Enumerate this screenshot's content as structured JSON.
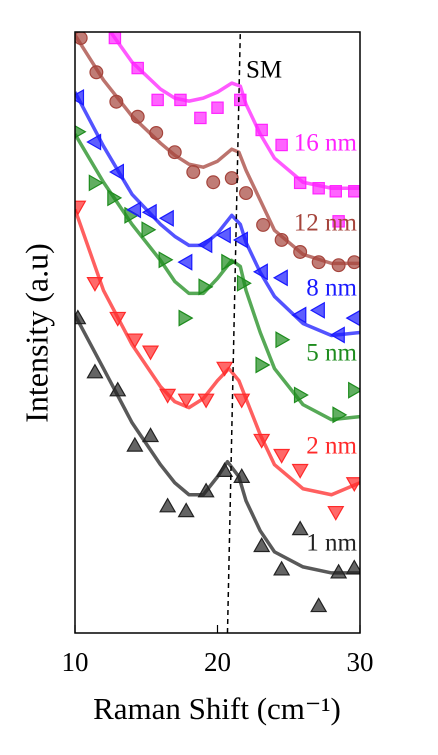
{
  "chart_data": {
    "type": "scatter-fit",
    "x_label": "Raman Shift (cm⁻¹)",
    "y_label": "Intensity (a.u)",
    "xlim": [
      10,
      30
    ],
    "xticks": [
      10,
      20,
      30
    ],
    "ylim": [
      0,
      100
    ],
    "sm_line": {
      "label": "SM",
      "x": [
        20.7,
        21.6
      ],
      "y": [
        0,
        100
      ]
    },
    "series": [
      {
        "name": "1 nm",
        "color": "#222222",
        "marker": "triangle-up",
        "x": [
          10.2,
          11.4,
          13.0,
          14.2,
          15.3,
          16.5,
          17.8,
          19.2,
          20.5,
          21.7,
          23.1,
          24.5,
          25.8,
          27.1,
          28.5,
          29.6
        ],
        "values": [
          52.4,
          43.4,
          40.4,
          31.2,
          32.8,
          21.1,
          20.3,
          23.6,
          27.0,
          26.0,
          14.5,
          10.6,
          17.3,
          4.5,
          10.1,
          10.8
        ],
        "fit": {
          "x": [
            10,
            12,
            14,
            16,
            17,
            18,
            19,
            20,
            20.7,
            21.5,
            22,
            23,
            24,
            26,
            28,
            30
          ],
          "values": [
            52.9,
            44,
            35,
            28,
            25,
            23,
            23,
            26,
            28.5,
            26,
            22,
            17,
            13.5,
            11,
            10,
            10
          ]
        }
      },
      {
        "name": "2 nm",
        "color": "#ff2a2a",
        "marker": "triangle-down",
        "x": [
          10.2,
          11.4,
          13.0,
          14.2,
          15.3,
          16.5,
          17.8,
          19.2,
          20.5,
          21.7,
          23.1,
          24.5,
          25.8,
          28.3,
          29.6
        ],
        "values": [
          70.9,
          58.2,
          52.4,
          48.8,
          46.8,
          39.6,
          38.8,
          38.8,
          44.1,
          38.8,
          32.1,
          29.6,
          27.1,
          20.1,
          24.9
        ],
        "fit": {
          "x": [
            10,
            12,
            14,
            16,
            17,
            18,
            19,
            20,
            20.8,
            21.5,
            22,
            23,
            24,
            26,
            28,
            30
          ],
          "values": [
            70.5,
            57,
            48,
            41,
            38.5,
            37.5,
            39,
            42,
            44,
            42,
            39,
            33,
            28,
            24,
            23,
            25
          ]
        }
      },
      {
        "name": "5 nm",
        "color": "#1e8c1e",
        "marker": "triangle-right",
        "x": [
          10.2,
          11.4,
          12.7,
          13.9,
          15.1,
          16.3,
          17.7,
          19.1,
          20.7,
          21.8,
          23.1,
          24.5,
          25.8,
          28.5,
          29.6
        ],
        "values": [
          83.4,
          74.9,
          72.4,
          69.5,
          67.1,
          62.1,
          52.4,
          57.6,
          61.7,
          58.2,
          44.6,
          48.8,
          39.6,
          36.3,
          40.4
        ],
        "fit": {
          "x": [
            10,
            12,
            14,
            16,
            17,
            18,
            19,
            20,
            21,
            21.6,
            22,
            23,
            24,
            26,
            28,
            30
          ],
          "values": [
            83,
            75,
            68,
            62,
            58.5,
            56.5,
            56.5,
            59,
            62,
            61,
            57,
            50,
            44,
            38,
            35.5,
            36
          ]
        }
      },
      {
        "name": "8 nm",
        "color": "#1a1aff",
        "marker": "triangle-left",
        "x": [
          10.2,
          11.4,
          13.0,
          14.2,
          15.3,
          16.5,
          17.8,
          19.2,
          20.5,
          21.7,
          23.1,
          24.5,
          25.8,
          27.1,
          28.5,
          29.6
        ],
        "values": [
          89.1,
          81.7,
          76.7,
          70.4,
          70.0,
          69.0,
          61.7,
          64.6,
          66.2,
          65.4,
          60.1,
          59.1,
          52.9,
          53.7,
          49.6,
          52.4
        ],
        "fit": {
          "x": [
            10,
            12,
            14,
            16,
            17,
            18,
            19,
            20,
            21,
            21.6,
            22,
            23,
            24,
            26,
            28,
            30
          ],
          "values": [
            90,
            81,
            73,
            68,
            66,
            64.5,
            64.5,
            66.5,
            69.5,
            68,
            65,
            60,
            56,
            51.5,
            49.5,
            50
          ]
        }
      },
      {
        "name": "12 nm",
        "color": "#a5443c",
        "marker": "circle",
        "x": [
          10.4,
          11.5,
          12.9,
          14.4,
          15.7,
          17.0,
          18.3,
          19.7,
          21.0,
          22.0,
          23.2,
          24.5,
          25.8,
          27.1,
          28.5,
          29.6
        ],
        "values": [
          99.0,
          93.3,
          88.4,
          85.9,
          83.2,
          80.0,
          76.7,
          75.0,
          75.7,
          73.2,
          67.9,
          65.4,
          63.4,
          61.7,
          61.2,
          61.7
        ],
        "fit": {
          "x": [
            10,
            12,
            14,
            16,
            17,
            18,
            19,
            20,
            21,
            21.5,
            22,
            23,
            24,
            26,
            28,
            30
          ],
          "values": [
            99.5,
            92,
            86,
            81.5,
            79.5,
            78,
            77.5,
            78.5,
            80.5,
            80,
            77,
            72,
            67,
            63,
            61.5,
            61.5
          ]
        }
      },
      {
        "name": "16 nm",
        "color": "#ff22ff",
        "marker": "square",
        "x": [
          12.8,
          14.4,
          15.8,
          17.4,
          18.8,
          20.0,
          21.6,
          23.1,
          24.5,
          25.8,
          27.1,
          28.3,
          28.5,
          29.6
        ],
        "values": [
          99.0,
          94.0,
          88.7,
          88.7,
          85.7,
          87.4,
          88.7,
          83.7,
          81.2,
          74.9,
          74.0,
          73.5,
          68.5,
          73.5
        ],
        "fit": {
          "x": [
            12.5,
            14,
            16,
            17,
            18,
            19,
            20,
            21,
            21.6,
            22,
            23,
            24,
            26,
            28,
            30
          ],
          "values": [
            100,
            95,
            90.5,
            89,
            88.5,
            89,
            90,
            91.5,
            91,
            88,
            83,
            79,
            75,
            74,
            74
          ]
        }
      }
    ]
  }
}
